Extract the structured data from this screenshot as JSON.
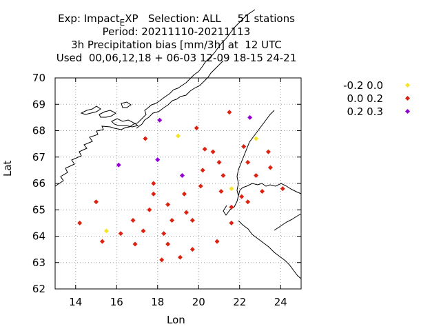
{
  "header": {
    "exp_prefix": "Exp: Impact",
    "exp_sub": "E",
    "exp_suffix": "XP   Selection: ALL     51 stations",
    "period": "Period: 20211110-20211113",
    "parameter": "3h Precipitation bias [mm/3h] at  12 UTC",
    "used": "Used  00,06,12,18 + 06-03 12-09 18-15 24-21"
  },
  "chart_data": {
    "type": "scatter",
    "xlabel": "Lon",
    "ylabel": "Lat",
    "xlim": [
      13,
      25
    ],
    "ylim": [
      62,
      70
    ],
    "xticks": [
      14,
      16,
      18,
      20,
      22,
      24
    ],
    "yticks": [
      62,
      63,
      64,
      65,
      66,
      67,
      68,
      69,
      70
    ],
    "grid": true,
    "legend_position": "right",
    "series": [
      {
        "name": "-0.2 0.0",
        "color": "#f5e326",
        "points": [
          [
            15.5,
            64.2
          ],
          [
            19.0,
            67.8
          ],
          [
            21.6,
            65.8
          ],
          [
            22.8,
            67.7
          ]
        ]
      },
      {
        "name": "0.0 0.2",
        "color": "#dd2211",
        "points": [
          [
            14.2,
            64.5
          ],
          [
            15.0,
            65.3
          ],
          [
            15.3,
            63.8
          ],
          [
            16.2,
            64.1
          ],
          [
            16.8,
            64.6
          ],
          [
            16.9,
            63.7
          ],
          [
            17.3,
            64.2
          ],
          [
            17.4,
            67.7
          ],
          [
            17.6,
            65.0
          ],
          [
            17.8,
            65.6
          ],
          [
            17.8,
            66.0
          ],
          [
            18.2,
            63.1
          ],
          [
            18.3,
            64.1
          ],
          [
            18.5,
            63.7
          ],
          [
            18.5,
            65.2
          ],
          [
            18.7,
            64.6
          ],
          [
            19.1,
            63.2
          ],
          [
            19.3,
            65.6
          ],
          [
            19.4,
            64.9
          ],
          [
            19.7,
            63.5
          ],
          [
            19.7,
            64.6
          ],
          [
            19.9,
            68.1
          ],
          [
            20.1,
            65.9
          ],
          [
            20.2,
            66.5
          ],
          [
            20.3,
            67.3
          ],
          [
            20.7,
            67.2
          ],
          [
            20.9,
            63.8
          ],
          [
            21.0,
            66.8
          ],
          [
            21.1,
            65.7
          ],
          [
            21.2,
            66.3
          ],
          [
            21.5,
            68.7
          ],
          [
            21.6,
            64.5
          ],
          [
            21.6,
            65.1
          ],
          [
            22.1,
            65.5
          ],
          [
            22.2,
            67.4
          ],
          [
            22.4,
            66.8
          ],
          [
            22.4,
            65.3
          ],
          [
            22.8,
            66.3
          ],
          [
            23.1,
            65.7
          ],
          [
            23.4,
            67.2
          ],
          [
            23.5,
            66.6
          ],
          [
            24.1,
            65.8
          ]
        ]
      },
      {
        "name": "0.2 0.3",
        "color": "#9400d3",
        "points": [
          [
            16.1,
            66.7
          ],
          [
            18.0,
            66.9
          ],
          [
            18.1,
            68.4
          ],
          [
            19.2,
            66.3
          ],
          [
            22.5,
            68.5
          ]
        ]
      }
    ]
  }
}
